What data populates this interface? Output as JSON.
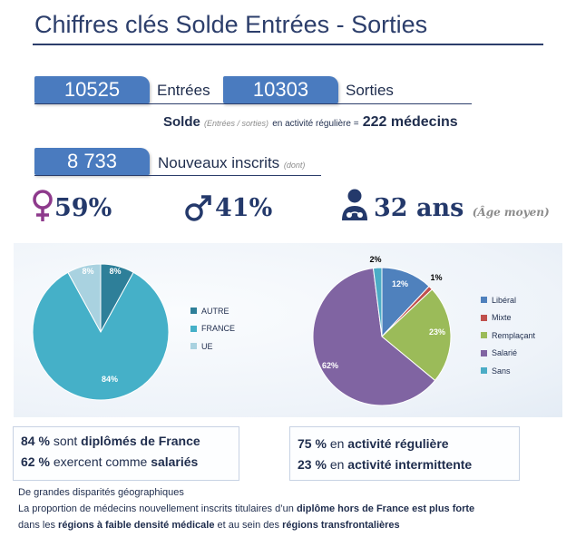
{
  "title": "Chiffres clés Solde Entrées - Sorties",
  "stats": {
    "entrees_value": "10525",
    "entrees_label": "Entrées",
    "sorties_value": "10303",
    "sorties_label": "Sorties",
    "nouveaux_value": "8 733",
    "nouveaux_label": "Nouveaux inscrits",
    "nouveaux_note": "(dont)"
  },
  "solde": {
    "label": "Solde",
    "sub": "(Entrées / sorties)",
    "middle": "en activité régulière =",
    "value": "222 médecins"
  },
  "kpis": {
    "female_pct": "59%",
    "male_pct": "41%",
    "age": "32 ans",
    "age_note": "(Âge moyen)",
    "female_icon": "female-symbol-icon",
    "male_icon": "male-symbol-icon",
    "doctor_icon": "doctor-icon"
  },
  "chart_data": [
    {
      "type": "pie",
      "categories": [
        "AUTRE",
        "FRANCE",
        "UE"
      ],
      "values": [
        8,
        84,
        8
      ],
      "labels": [
        "8%",
        "84%",
        "8%"
      ],
      "colors": [
        "#2e7f99",
        "#45b0c8",
        "#a9d2e0"
      ],
      "legend": "right"
    },
    {
      "type": "pie",
      "categories": [
        "Libéral",
        "Mixte",
        "Remplaçant",
        "Salarié",
        "Sans"
      ],
      "values": [
        12,
        1,
        23,
        62,
        2
      ],
      "labels": [
        "12%",
        "1%",
        "23%",
        "62%",
        "2%"
      ],
      "colors": [
        "#4f81bd",
        "#c0504d",
        "#9bbb59",
        "#8064a2",
        "#4bacc6"
      ],
      "legend": "right"
    }
  ],
  "box_left": {
    "line1_a": "84 %",
    "line1_b": "sont",
    "line1_c": "diplômés de France",
    "line2_a": "62 %",
    "line2_b": "exercent comme",
    "line2_c": "salariés"
  },
  "box_right": {
    "line1_a": "75 %",
    "line1_b": "en",
    "line1_c": "activité régulière",
    "line2_a": "23 %",
    "line2_b": "en",
    "line2_c": "activité intermittente"
  },
  "footer": {
    "line1": "De grandes disparités géographiques",
    "line2_a": "La proportion de médecins nouvellement inscrits titulaires d’un",
    "line2_b": "diplôme hors de France est plus forte",
    "line3_a": "dans les",
    "line3_b": "régions à faible densité médicale",
    "line3_c": "et au sein des",
    "line3_d": "régions transfrontalières"
  }
}
